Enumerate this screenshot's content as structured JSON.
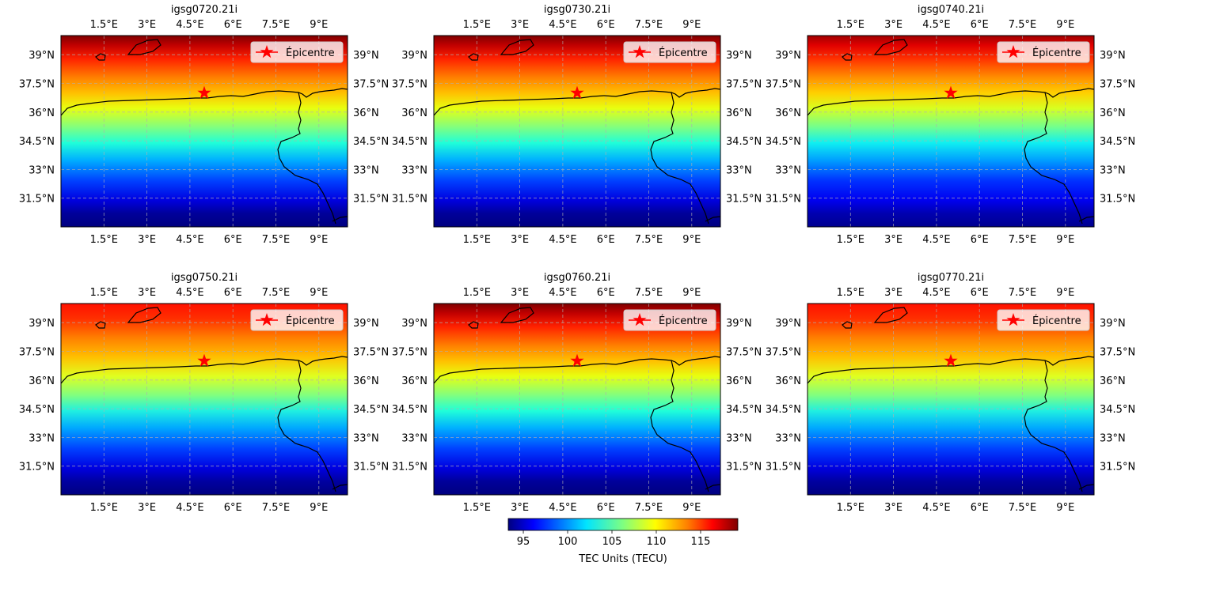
{
  "lat_ticks": [
    "31.5°N",
    "33°N",
    "34.5°N",
    "36°N",
    "37.5°N",
    "39°N"
  ],
  "lon_ticks": [
    "1.5°E",
    "3°E",
    "4.5°E",
    "6°E",
    "7.5°E",
    "9°E"
  ],
  "legend_label": "Épicentre",
  "colorbar": {
    "label": "TEC Units (TECU)",
    "ticks": [
      "95",
      "100",
      "105",
      "110",
      "115"
    ],
    "min": 93.3,
    "max": 119.2,
    "colormap": "jet"
  },
  "panels": [
    {
      "title": "igsg0720.21i"
    },
    {
      "title": "igsg0730.21i"
    },
    {
      "title": "igsg0740.21i"
    },
    {
      "title": "igsg0750.21i"
    },
    {
      "title": "igsg0760.21i"
    },
    {
      "title": "igsg0770.21i"
    }
  ],
  "epicentre": {
    "lon": 5.0,
    "lat": 37.0
  },
  "extent": {
    "lon": [
      0.0,
      10.0
    ],
    "lat": [
      30.0,
      40.0
    ]
  },
  "gridlines": true,
  "colors": {
    "marker": "#ff0000",
    "coastline": "#000000",
    "grid": "#b0b0b0"
  }
}
